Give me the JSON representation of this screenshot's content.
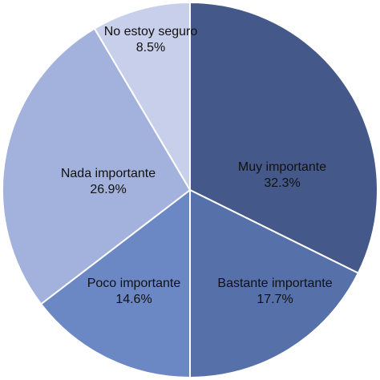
{
  "chart_data": {
    "type": "pie",
    "categories": [
      "Muy importante",
      "Bastante importante",
      "Poco importante",
      "Nada importante",
      "No estoy seguro"
    ],
    "values": [
      32.3,
      17.7,
      14.6,
      26.9,
      8.5
    ],
    "value_labels": [
      "32.3%",
      "17.7%",
      "14.6%",
      "26.9%",
      "8.5%"
    ],
    "colors": [
      "#44598a",
      "#5670a9",
      "#6b88c5",
      "#a3b2dc",
      "#c8cfea"
    ]
  }
}
